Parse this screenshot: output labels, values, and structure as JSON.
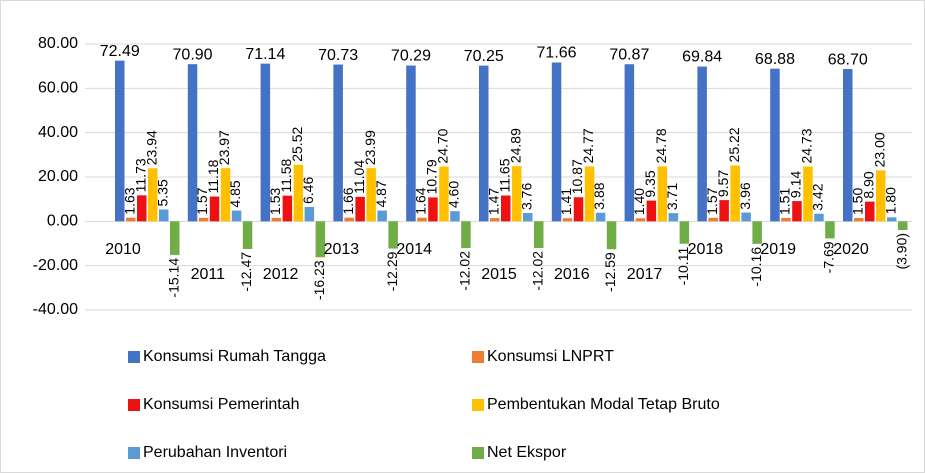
{
  "chart_data": {
    "type": "bar",
    "categories": [
      "2010",
      "2011",
      "2012",
      "2013",
      "2014",
      "2015",
      "2016",
      "2017",
      "2018",
      "2019",
      "2020"
    ],
    "series": [
      {
        "name": "Konsumsi Rumah Tangga",
        "color": "#4472c4",
        "values": [
          72.49,
          70.9,
          71.14,
          70.73,
          70.29,
          70.25,
          71.66,
          70.87,
          69.84,
          68.88,
          68.7
        ],
        "value_labels": [
          "72.49",
          "70.90",
          "71.14",
          "70.73",
          "70.29",
          "70.25",
          "71.66",
          "70.87",
          "69.84",
          "68.88",
          "68.70"
        ]
      },
      {
        "name": "Konsumsi LNPRT",
        "color": "#ed7d31",
        "values": [
          1.63,
          1.57,
          1.53,
          1.66,
          1.64,
          1.47,
          1.41,
          1.4,
          1.57,
          1.51,
          1.5
        ],
        "value_labels": [
          "1.63",
          "1.57",
          "1.53",
          "1.66",
          "1.64",
          "1.47",
          "1.41",
          "1.40",
          "1.57",
          "1.51",
          "1.50"
        ]
      },
      {
        "name": "Konsumsi Pemerintah",
        "color": "#ee1111",
        "values": [
          11.73,
          11.18,
          11.58,
          11.04,
          10.79,
          11.65,
          10.87,
          9.35,
          9.57,
          9.14,
          8.9
        ],
        "value_labels": [
          "11.73",
          "11.18",
          "11.58",
          "11.04",
          "10.79",
          "11.65",
          "10.87",
          "9.35",
          "9.57",
          "9.14",
          "8.90"
        ]
      },
      {
        "name": "Pembentukan Modal Tetap Bruto",
        "color": "#ffc000",
        "values": [
          23.94,
          23.97,
          25.52,
          23.99,
          24.7,
          24.89,
          24.77,
          24.78,
          25.22,
          24.73,
          23.0
        ],
        "value_labels": [
          "23.94",
          "23.97",
          "25.52",
          "23.99",
          "24.70",
          "24.89",
          "24.77",
          "24.78",
          "25.22",
          "24.73",
          "23.00"
        ]
      },
      {
        "name": "Perubahan Inventori",
        "color": "#5b9bd5",
        "values": [
          5.35,
          4.85,
          6.46,
          4.87,
          4.6,
          3.76,
          3.88,
          3.71,
          3.96,
          3.42,
          1.8
        ],
        "value_labels": [
          "5.35",
          "4.85",
          "6.46",
          "4.87",
          "4.60",
          "3.76",
          "3.88",
          "3.71",
          "3.96",
          "3.42",
          "1.80"
        ]
      },
      {
        "name": "Net Ekspor",
        "color": "#70ad47",
        "values": [
          -15.14,
          -12.47,
          -16.23,
          -12.29,
          -12.02,
          -12.02,
          -12.59,
          -10.11,
          -10.16,
          -7.69,
          -3.9
        ],
        "value_labels": [
          "-15.14",
          "-12.47",
          "-16.23",
          "-12.29",
          "-12.02",
          "-12.02",
          "-12.59",
          "-10.11",
          "-10.16",
          "-7.69",
          "(3.90)"
        ]
      }
    ],
    "ylim": [
      -40,
      80
    ],
    "yticks": [
      {
        "value": -40,
        "label": "-40.00"
      },
      {
        "value": -20,
        "label": "-20.00"
      },
      {
        "value": 0,
        "label": "0.00"
      },
      {
        "value": 20,
        "label": "20.00"
      },
      {
        "value": 40,
        "label": "40.00"
      },
      {
        "value": 60,
        "label": "60.00"
      },
      {
        "value": 80,
        "label": "80.00"
      }
    ],
    "grid": true
  }
}
